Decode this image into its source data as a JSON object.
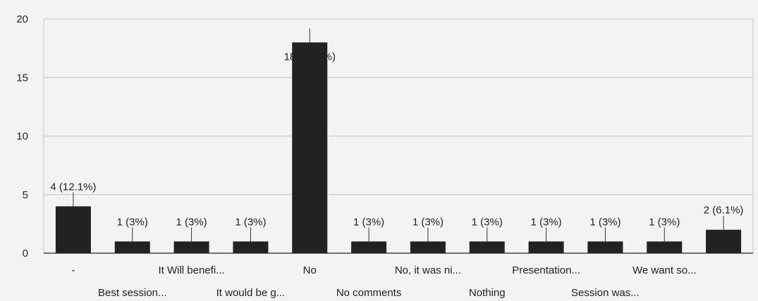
{
  "chart_data": {
    "type": "bar",
    "title": "",
    "xlabel": "",
    "ylabel": "",
    "ylim": [
      0,
      20
    ],
    "yticks": [
      0,
      5,
      10,
      15,
      20
    ],
    "grid": true,
    "legend": "none",
    "bar_color": "#222222",
    "categories": [
      "-",
      "Best session...",
      "It Will benefi...",
      "It would be g...",
      "No",
      "No comments",
      "No, it was ni...",
      "Nothing",
      "Presentation...",
      "Session was...",
      "We want so...",
      ""
    ],
    "values": [
      4,
      1,
      1,
      1,
      18,
      1,
      1,
      1,
      1,
      1,
      1,
      2
    ],
    "data_labels": [
      "4 (12.1%)",
      "1 (3%)",
      "1 (3%)",
      "1 (3%)",
      "18 (54.5%)",
      "1 (3%)",
      "1 (3%)",
      "1 (3%)",
      "1 (3%)",
      "1 (3%)",
      "1 (3%)",
      "2 (6.1%)"
    ]
  }
}
